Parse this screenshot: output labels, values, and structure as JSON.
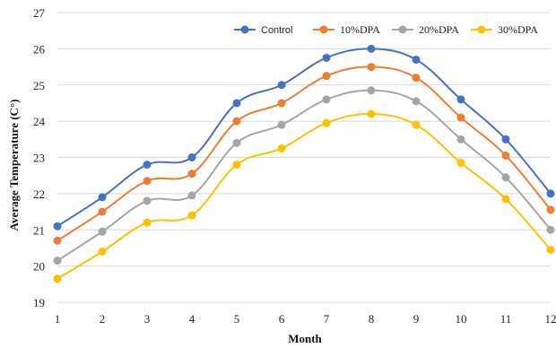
{
  "chart_data": {
    "type": "line",
    "title": "",
    "xlabel": "Month",
    "ylabel": "Average Temperature (C°)",
    "x": [
      1,
      2,
      3,
      4,
      5,
      6,
      7,
      8,
      9,
      10,
      11,
      12
    ],
    "x_ticks": [
      "1",
      "2",
      "3",
      "4",
      "5",
      "6",
      "7",
      "8",
      "9",
      "10",
      "11",
      "12"
    ],
    "ylim": [
      19,
      27
    ],
    "y_ticks": [
      "19",
      "20",
      "21",
      "22",
      "23",
      "24",
      "25",
      "26",
      "27"
    ],
    "grid": "horizontal",
    "legend_position": "top-right",
    "series": [
      {
        "name": "Control",
        "color": "#4472C4",
        "values": [
          21.1,
          21.9,
          22.8,
          23.0,
          24.5,
          25.0,
          25.75,
          26.0,
          25.7,
          24.6,
          23.5,
          22.0
        ]
      },
      {
        "name": "10%DPA",
        "color": "#ED7D31",
        "values": [
          20.7,
          21.5,
          22.35,
          22.55,
          24.0,
          24.5,
          25.25,
          25.5,
          25.2,
          24.1,
          23.05,
          21.55
        ]
      },
      {
        "name": "20%DPA",
        "color": "#A5A5A5",
        "values": [
          20.15,
          20.95,
          21.8,
          21.95,
          23.4,
          23.9,
          24.6,
          24.85,
          24.55,
          23.5,
          22.45,
          21.0
        ]
      },
      {
        "name": "30%DPA",
        "color": "#FFC000",
        "values": [
          19.65,
          20.4,
          21.2,
          21.4,
          22.8,
          23.25,
          23.95,
          24.2,
          23.9,
          22.85,
          21.85,
          20.45
        ]
      }
    ]
  }
}
